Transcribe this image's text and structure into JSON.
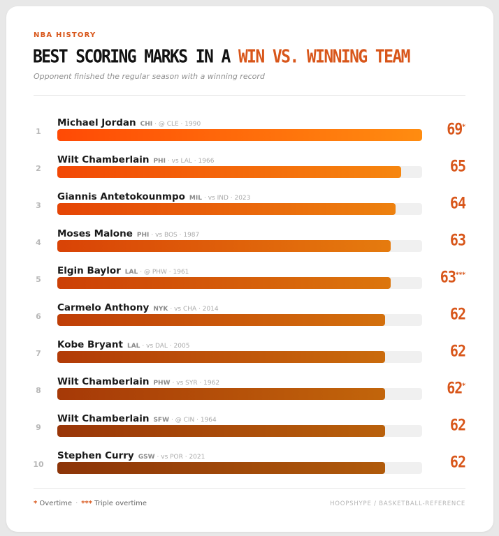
{
  "kicker": "NBA HISTORY",
  "title_main": "BEST SCORING MARKS IN A ",
  "title_accent": "WIN VS. WINNING TEAM",
  "subtitle": "Opponent finished the regular season with a winning record",
  "colors": {
    "accent": "#d8561a",
    "bar_light_start": "#ff4a05",
    "bar_light_end": "#ff8c10",
    "bar_dark_start": "#8c3408",
    "bar_dark_end": "#b05a0a",
    "track": "#f0f0f0"
  },
  "chart_data": {
    "type": "bar",
    "orientation": "horizontal",
    "title": "BEST SCORING MARKS IN A WIN VS. WINNING TEAM",
    "subtitle": "Opponent finished the regular season with a winning record",
    "xlim": [
      0,
      69
    ],
    "grid": false,
    "rows": [
      {
        "rank": "1",
        "player": "Michael Jordan",
        "team": "CHI",
        "game": "@ CLE · 1990",
        "points": 69,
        "ot": "*"
      },
      {
        "rank": "2",
        "player": "Wilt Chamberlain",
        "team": "PHI",
        "game": "vs LAL · 1966",
        "points": 65,
        "ot": ""
      },
      {
        "rank": "3",
        "player": "Giannis Antetokounmpo",
        "team": "MIL",
        "game": "vs IND · 2023",
        "points": 64,
        "ot": ""
      },
      {
        "rank": "4",
        "player": "Moses Malone",
        "team": "PHI",
        "game": "vs BOS · 1987",
        "points": 63,
        "ot": ""
      },
      {
        "rank": "5",
        "player": "Elgin Baylor",
        "team": "LAL",
        "game": "@ PHW · 1961",
        "points": 63,
        "ot": "***"
      },
      {
        "rank": "6",
        "player": "Carmelo Anthony",
        "team": "NYK",
        "game": "vs CHA · 2014",
        "points": 62,
        "ot": ""
      },
      {
        "rank": "7",
        "player": "Kobe Bryant",
        "team": "LAL",
        "game": "vs DAL · 2005",
        "points": 62,
        "ot": ""
      },
      {
        "rank": "8",
        "player": "Wilt Chamberlain",
        "team": "PHW",
        "game": "vs SYR · 1962",
        "points": 62,
        "ot": "*"
      },
      {
        "rank": "9",
        "player": "Wilt Chamberlain",
        "team": "SFW",
        "game": "@ CIN · 1964",
        "points": 62,
        "ot": ""
      },
      {
        "rank": "10",
        "player": "Stephen Curry",
        "team": "GSW",
        "game": "vs POR · 2021",
        "points": 62,
        "ot": ""
      }
    ]
  },
  "legend": {
    "ot_mark": "*",
    "ot_label": "Overtime",
    "separator": "·",
    "tot_mark": "***",
    "tot_label": "Triple overtime"
  },
  "source": "HOOPSHYPE / BASKETBALL-REFERENCE"
}
